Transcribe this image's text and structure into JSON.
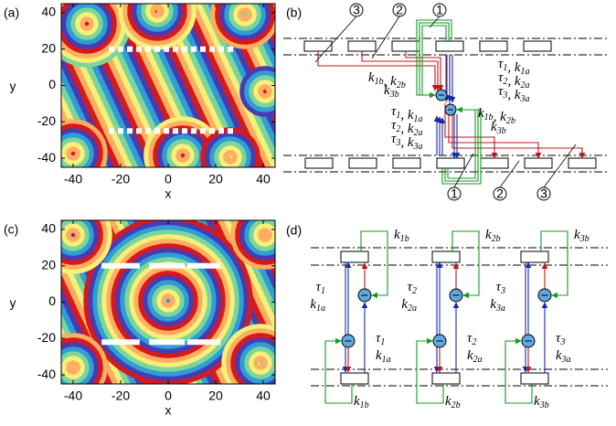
{
  "plots": [
    {
      "label": "(a)",
      "xlabel": "x",
      "ylabel": "y",
      "xlim": [
        -45,
        45
      ],
      "ylim": [
        -45,
        45
      ],
      "xticks": [
        -40,
        -20,
        0,
        20,
        40
      ],
      "yticks": [
        -40,
        -20,
        0,
        20,
        40
      ]
    },
    {
      "label": "(c)",
      "xlabel": "x",
      "ylabel": "y",
      "xlim": [
        -45,
        45
      ],
      "ylim": [
        -45,
        45
      ],
      "xticks": [
        -40,
        -20,
        0,
        20,
        40
      ],
      "yticks": [
        -40,
        -20,
        0,
        20,
        40
      ]
    }
  ],
  "diagram_b": {
    "label": "(b)",
    "markers": [
      "3",
      "2",
      "1",
      "1",
      "2",
      "3"
    ],
    "labels": [
      [
        {
          "base": "τ",
          "sub": "1"
        },
        ", ",
        {
          "base": "k",
          "sub": "1a"
        }
      ],
      [
        {
          "base": "τ",
          "sub": "2"
        },
        ", ",
        {
          "base": "k",
          "sub": "2a"
        }
      ],
      [
        {
          "base": "τ",
          "sub": "3"
        },
        ", ",
        {
          "base": "k",
          "sub": "3a"
        }
      ],
      [
        {
          "base": "k",
          "sub": "1b"
        },
        ", ",
        {
          "base": "k",
          "sub": "2b"
        }
      ],
      [
        {
          "base": "k",
          "sub": "3b"
        }
      ],
      [
        {
          "base": "τ",
          "sub": "1"
        },
        ", ",
        {
          "base": "k",
          "sub": "1a"
        }
      ],
      [
        {
          "base": "τ",
          "sub": "2"
        },
        ", ",
        {
          "base": "k",
          "sub": "2a"
        }
      ],
      [
        {
          "base": "τ",
          "sub": "3"
        },
        ", ",
        {
          "base": "k",
          "sub": "3a"
        }
      ],
      [
        {
          "base": "k",
          "sub": "1b"
        },
        ", ",
        {
          "base": "k",
          "sub": "2b"
        }
      ],
      [
        {
          "base": "k",
          "sub": "3b"
        }
      ]
    ]
  },
  "diagram_d": {
    "label": "(d)",
    "units": [
      {
        "tau": {
          "base": "τ",
          "sub": "1"
        },
        "ka": {
          "base": "k",
          "sub": "1a"
        },
        "kb": {
          "base": "k",
          "sub": "1b"
        }
      },
      {
        "tau": {
          "base": "τ",
          "sub": "2"
        },
        "ka": {
          "base": "k",
          "sub": "2a"
        },
        "kb": {
          "base": "k",
          "sub": "2b"
        }
      },
      {
        "tau": {
          "base": "τ",
          "sub": "3"
        },
        "ka": {
          "base": "k",
          "sub": "3a"
        },
        "kb": {
          "base": "k",
          "sub": "3b"
        }
      }
    ]
  }
}
